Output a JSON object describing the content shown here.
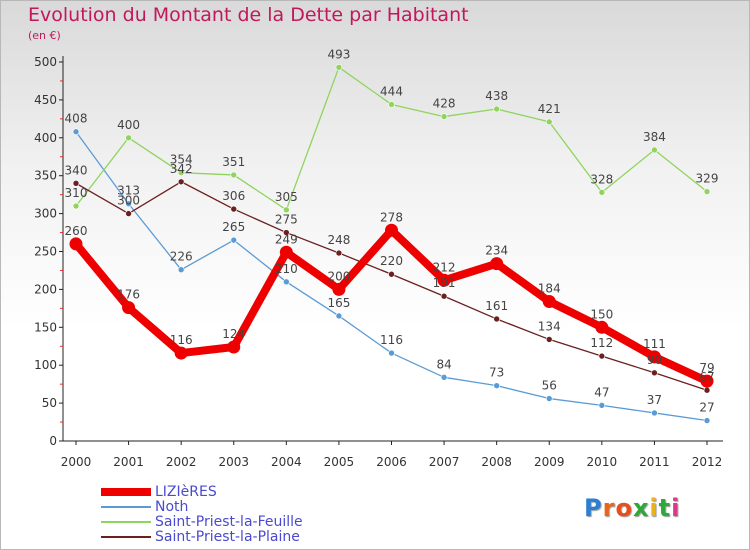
{
  "header": {
    "title": "Evolution du Montant de la Dette par Habitant",
    "unit": "(en €)"
  },
  "logo": {
    "text": "Proxiti",
    "letters": [
      "P",
      "r",
      "o",
      "x",
      "i",
      "t",
      "i"
    ],
    "colors": [
      "#2a7fd4",
      "#e8661c",
      "#e84d1c",
      "#2fa83a",
      "#e8b21c",
      "#2fa83a",
      "#d93a8b"
    ]
  },
  "chart_data": {
    "type": "line",
    "title": "Evolution du Montant de la Dette par Habitant",
    "subtitle": "(en €)",
    "xlabel": "",
    "ylabel": "",
    "x": [
      "2000",
      "2001",
      "2002",
      "2003",
      "2004",
      "2005",
      "2006",
      "2007",
      "2008",
      "2009",
      "2010",
      "2011",
      "2012"
    ],
    "ylim": [
      0,
      500
    ],
    "yticks": [
      0,
      50,
      100,
      150,
      200,
      250,
      300,
      350,
      400,
      450,
      500
    ],
    "grid": false,
    "legend_position": "bottom-left",
    "series": [
      {
        "name": "LIZIèRES",
        "color": "#ee0000",
        "emphasis": true,
        "values": [
          260,
          176,
          116,
          124,
          249,
          200,
          278,
          212,
          234,
          184,
          150,
          111,
          79
        ]
      },
      {
        "name": "Noth",
        "color": "#5b9bd5",
        "emphasis": false,
        "values": [
          408,
          313,
          226,
          265,
          210,
          165,
          116,
          84,
          73,
          56,
          47,
          37,
          27
        ]
      },
      {
        "name": "Saint-Priest-la-Feuille",
        "color": "#8fd45c",
        "emphasis": false,
        "values": [
          310,
          400,
          354,
          351,
          305,
          493,
          444,
          428,
          438,
          421,
          328,
          384,
          329
        ]
      },
      {
        "name": "Saint-Priest-la-Plaine",
        "color": "#6b1f1f",
        "emphasis": false,
        "values": [
          340,
          300,
          342,
          306,
          275,
          248,
          220,
          191,
          161,
          134,
          112,
          90,
          67
        ]
      }
    ]
  }
}
